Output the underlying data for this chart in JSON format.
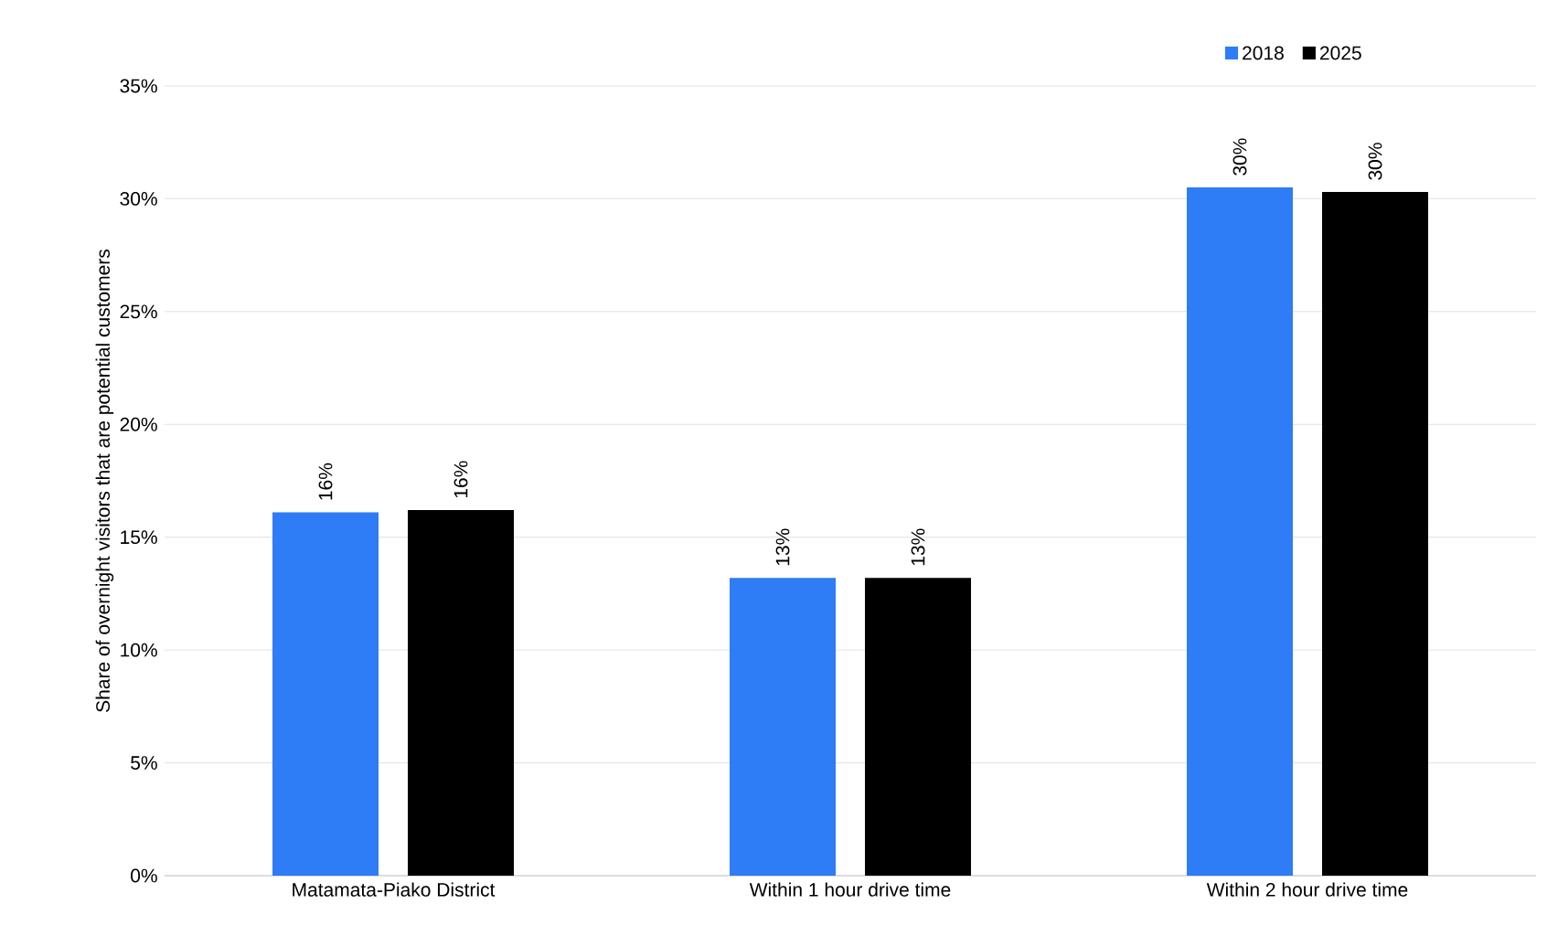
{
  "chart_data": {
    "type": "bar",
    "ylabel": "Share of overnight visitors that are potential customers",
    "categories": [
      "Matamata-Piako District",
      "Within 1 hour drive time",
      "Within 2 hour drive time"
    ],
    "series": [
      {
        "name": "2018",
        "color": "#2e7cf6",
        "values": [
          16.1,
          13.2,
          30.5
        ],
        "value_labels": [
          "16%",
          "13%",
          "30%"
        ]
      },
      {
        "name": "2025",
        "color": "#000000",
        "values": [
          16.2,
          13.2,
          30.3
        ],
        "value_labels": [
          "16%",
          "13%",
          "30%"
        ]
      }
    ],
    "ylim": [
      0,
      35
    ],
    "yticks": [
      {
        "value": 0,
        "label": "0%"
      },
      {
        "value": 5,
        "label": "5%"
      },
      {
        "value": 10,
        "label": "10%"
      },
      {
        "value": 15,
        "label": "15%"
      },
      {
        "value": 20,
        "label": "20%"
      },
      {
        "value": 25,
        "label": "25%"
      },
      {
        "value": 30,
        "label": "30%"
      },
      {
        "value": 35,
        "label": "35%"
      }
    ],
    "grid": "y",
    "legend": "top right"
  }
}
